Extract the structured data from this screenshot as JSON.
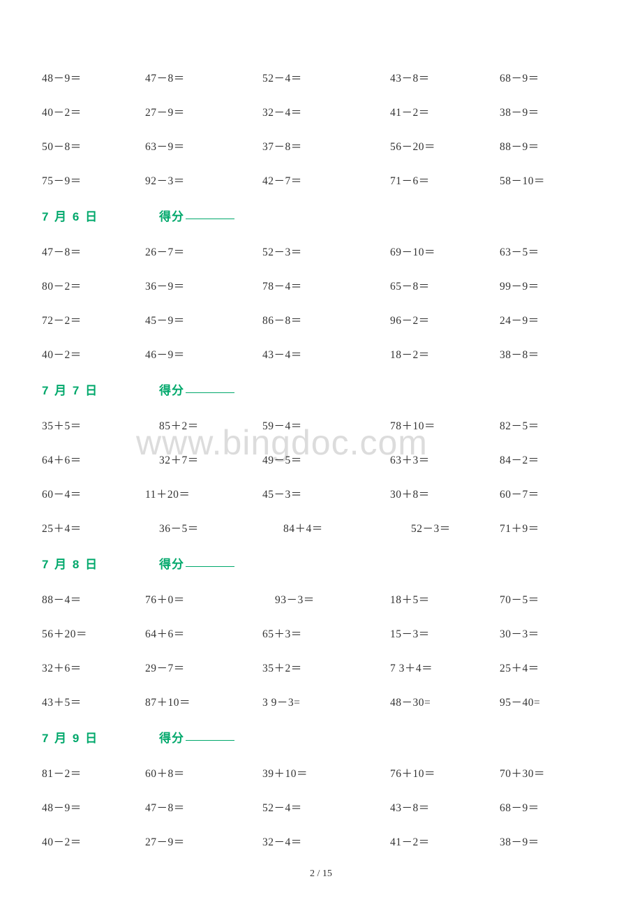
{
  "watermark": "www.bingdoc.com",
  "page_number": "2 / 15",
  "colors": {
    "text": "#333333",
    "accent": "#00a86b",
    "watermark": "#dcdcdc",
    "background": "#ffffff"
  },
  "typography": {
    "cell_fontsize": 15.5,
    "header_fontsize": 17,
    "pagenum_fontsize": 14,
    "watermark_fontsize": 50
  },
  "score_label": "得分",
  "top_rows": [
    [
      "48－9＝",
      "47－8＝",
      "52－4＝",
      "43－8＝",
      "68－9＝"
    ],
    [
      "40－2＝",
      "27－9＝",
      "32－4＝",
      "41－2＝",
      "38－9＝"
    ],
    [
      "50－8＝",
      "63－9＝",
      "37－8＝",
      "56－20＝",
      "88－9＝"
    ],
    [
      "75－9＝",
      "92－3＝",
      "42－7＝",
      "71－6＝",
      "58－10＝"
    ]
  ],
  "sections": [
    {
      "date": "7 月 6 日",
      "rows": [
        [
          "47－8＝",
          "26－7＝",
          "52－3＝",
          "69－10＝",
          "63－5＝"
        ],
        [
          "80－2＝",
          "36－9＝",
          "78－4＝",
          "65－8＝",
          "99－9＝"
        ],
        [
          "72－2＝",
          "45－9＝",
          "86－8＝",
          "96－2＝",
          "24－9＝"
        ],
        [
          "40－2＝",
          "46－9＝",
          "43－4＝",
          "18－2＝",
          "38－8＝"
        ]
      ]
    },
    {
      "date": "7 月 7 日",
      "rows": [
        [
          "35＋5＝",
          "85＋2＝",
          "59－4＝",
          "78＋10＝",
          "82－5＝"
        ],
        [
          "64＋6＝",
          "32＋7＝",
          "49－5＝",
          "63＋3＝",
          "84－2＝"
        ],
        [
          "60－4＝",
          "11＋20＝",
          "45－3＝",
          "30＋8＝",
          "60－7＝"
        ],
        [
          "25＋4＝",
          "36－5＝",
          "84＋4＝",
          "52－3＝",
          "71＋9＝"
        ]
      ]
    },
    {
      "date": "7 月 8 日",
      "rows": [
        [
          "88－4＝",
          "76＋0＝",
          "93－3＝",
          "18＋5＝",
          "70－5＝"
        ],
        [
          "56＋20＝",
          "64＋6＝",
          "65＋3＝",
          "15－3＝",
          "30－3＝"
        ],
        [
          "32＋6＝",
          "29－7＝",
          "35＋2＝",
          "7 3＋4＝",
          "25＋4＝"
        ],
        [
          "43＋5＝",
          "87＋10＝",
          "3 9－3=",
          "48－30=",
          "95－40="
        ]
      ]
    },
    {
      "date": "7 月 9 日",
      "rows": [
        [
          "81－2＝",
          "60＋8＝",
          "39＋10＝",
          "76＋10＝",
          "70＋30＝"
        ],
        [
          "48－9＝",
          "47－8＝",
          "52－4＝",
          "43－8＝",
          "68－9＝"
        ],
        [
          "40－2＝",
          "27－9＝",
          "32－4＝",
          "41－2＝",
          "38－9＝"
        ]
      ]
    }
  ],
  "column_offsets": {
    "section_1": [
      0,
      0,
      0,
      0,
      0
    ],
    "section_2_row_0": [
      0,
      20,
      0,
      0,
      0
    ],
    "section_2_row_1": [
      0,
      20,
      0,
      0,
      0
    ],
    "section_2_row_3": [
      0,
      20,
      30,
      30,
      0
    ],
    "section_3_row_0": [
      0,
      0,
      18,
      0,
      0
    ],
    "section_3_row_2": [
      0,
      0,
      0,
      0,
      0
    ],
    "section_3_row_3": [
      0,
      0,
      0,
      0,
      0
    ]
  }
}
